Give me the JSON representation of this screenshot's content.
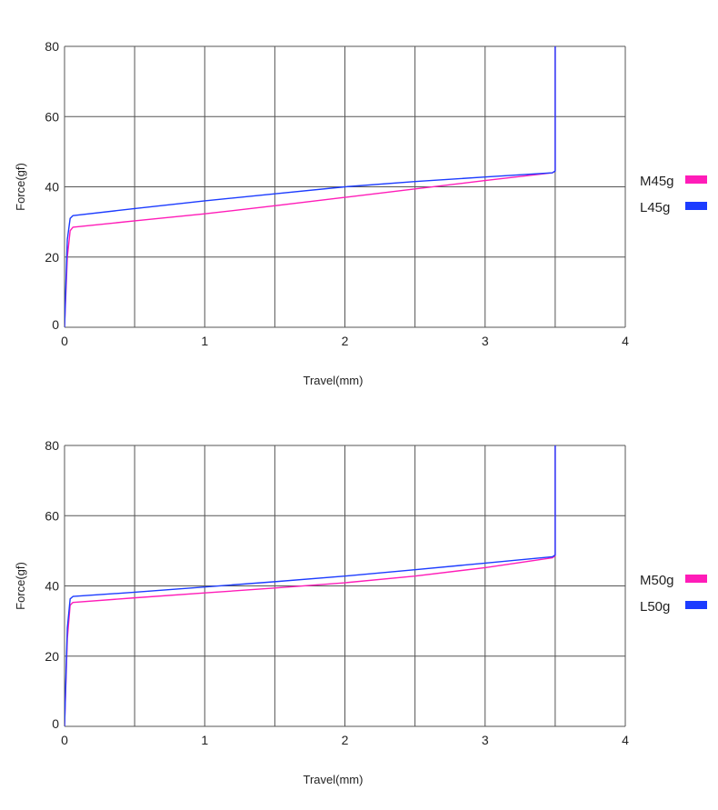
{
  "chart_data": [
    {
      "type": "line",
      "xlabel": "Travel(mm)",
      "ylabel": "Force(gf)",
      "xlim": [
        0,
        4
      ],
      "ylim": [
        0,
        80
      ],
      "xticks": [
        "0",
        "1",
        "2",
        "3",
        "4"
      ],
      "yticks": [
        "0",
        "20",
        "40",
        "60",
        "80"
      ],
      "grid": true,
      "legend_position": "right",
      "series": [
        {
          "name": "M45g",
          "color": "#ff1cb8",
          "points": [
            [
              0,
              0
            ],
            [
              0.02,
              20
            ],
            [
              0.04,
              27.5
            ],
            [
              0.06,
              28.5
            ],
            [
              0.5,
              30.3
            ],
            [
              1,
              32.3
            ],
            [
              1.5,
              34.6
            ],
            [
              2,
              37.0
            ],
            [
              2.5,
              39.4
            ],
            [
              3,
              41.8
            ],
            [
              3.48,
              44.0
            ],
            [
              3.5,
              44.5
            ],
            [
              3.5,
              80
            ]
          ]
        },
        {
          "name": "L45g",
          "color": "#1c3cff",
          "points": [
            [
              0,
              0
            ],
            [
              0.02,
              25
            ],
            [
              0.04,
              31.0
            ],
            [
              0.06,
              31.8
            ],
            [
              0.5,
              33.8
            ],
            [
              1,
              36.0
            ],
            [
              1.5,
              38.0
            ],
            [
              2,
              40.0
            ],
            [
              2.5,
              41.5
            ],
            [
              3,
              42.8
            ],
            [
              3.48,
              44.0
            ],
            [
              3.5,
              44.5
            ],
            [
              3.5,
              80
            ]
          ]
        }
      ]
    },
    {
      "type": "line",
      "xlabel": "Travel(mm)",
      "ylabel": "Force(gf)",
      "xlim": [
        0,
        4
      ],
      "ylim": [
        0,
        80
      ],
      "xticks": [
        "0",
        "1",
        "2",
        "3",
        "4"
      ],
      "yticks": [
        "0",
        "20",
        "40",
        "60",
        "80"
      ],
      "grid": true,
      "legend_position": "right",
      "series": [
        {
          "name": "M50g",
          "color": "#ff1cb8",
          "points": [
            [
              0,
              0
            ],
            [
              0.02,
              25
            ],
            [
              0.04,
              34.5
            ],
            [
              0.06,
              35.3
            ],
            [
              0.5,
              36.6
            ],
            [
              1,
              38.0
            ],
            [
              1.5,
              39.4
            ],
            [
              2,
              40.9
            ],
            [
              2.5,
              42.8
            ],
            [
              3,
              45.2
            ],
            [
              3.48,
              48.0
            ],
            [
              3.5,
              48.6
            ],
            [
              3.5,
              80
            ]
          ]
        },
        {
          "name": "L50g",
          "color": "#1c3cff",
          "points": [
            [
              0,
              0
            ],
            [
              0.02,
              28
            ],
            [
              0.04,
              36.3
            ],
            [
              0.06,
              37.0
            ],
            [
              0.5,
              38.2
            ],
            [
              1,
              39.7
            ],
            [
              1.5,
              41.2
            ],
            [
              2,
              42.8
            ],
            [
              2.5,
              44.6
            ],
            [
              3,
              46.5
            ],
            [
              3.48,
              48.3
            ],
            [
              3.5,
              48.8
            ],
            [
              3.5,
              80
            ]
          ]
        }
      ]
    }
  ]
}
